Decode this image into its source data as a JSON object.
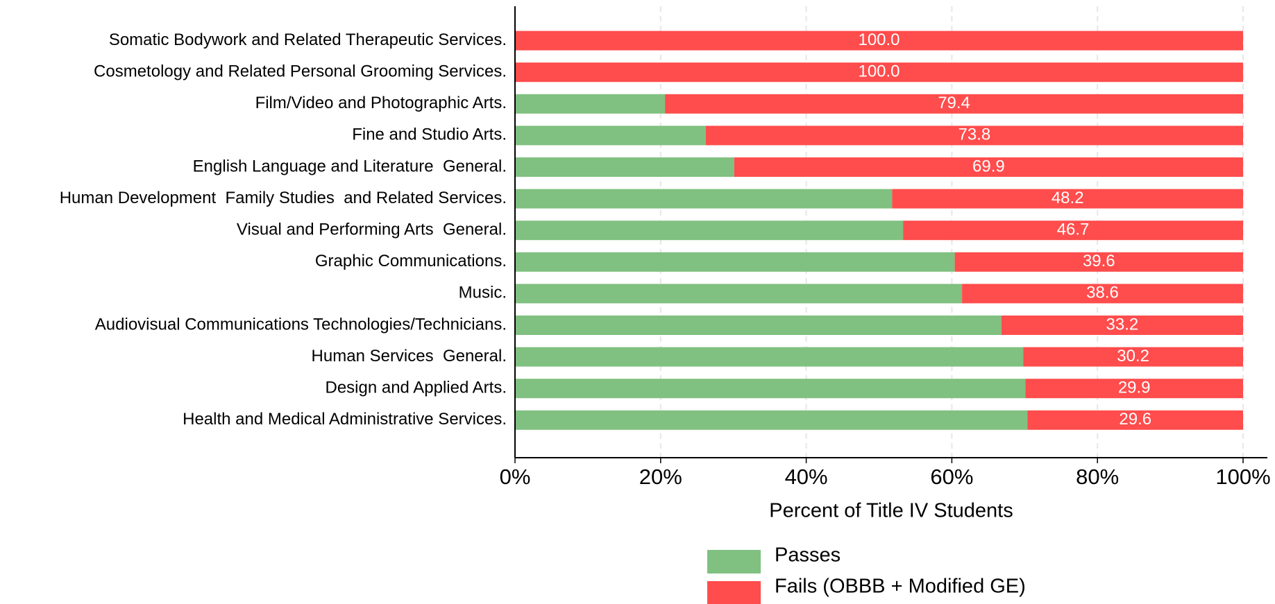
{
  "chart_data": {
    "type": "stacked_barh",
    "x_label": "Percent of Title IV Students",
    "categories": [
      "Somatic Bodywork and Related Therapeutic Services.",
      "Cosmetology and Related Personal Grooming Services.",
      "Film/Video and Photographic Arts.",
      "Fine and Studio Arts.",
      "English Language and Literature  General.",
      "Human Development  Family Studies  and Related Services.",
      "Visual and Performing Arts  General.",
      "Graphic Communications.",
      "Music.",
      "Audiovisual Communications Technologies/Technicians.",
      "Human Services  General.",
      "Design and Applied Arts.",
      "Health and Medical Administrative Services."
    ],
    "series": [
      {
        "name": "Passes",
        "color": "#80c080",
        "values": [
          0,
          0,
          20.6,
          26.2,
          30.1,
          51.8,
          53.3,
          60.4,
          61.4,
          66.8,
          69.8,
          70.1,
          70.4
        ]
      },
      {
        "name": "Fails (OBBB + Modified GE)",
        "color": "#ff4c4c",
        "values": [
          100,
          100,
          79.4,
          73.8,
          69.9,
          48.2,
          46.7,
          39.6,
          38.6,
          33.2,
          30.2,
          29.9,
          29.6
        ],
        "value_labels": [
          "100.0",
          "100.0",
          "79.4",
          "73.8",
          "69.9",
          "48.2",
          "46.7",
          "39.6",
          "38.6",
          "33.2",
          "30.2",
          "29.9",
          "29.6"
        ]
      }
    ],
    "xlim": [
      0,
      100
    ],
    "xticks": [
      {
        "value": 0,
        "label": "0%"
      },
      {
        "value": 20,
        "label": "20%"
      },
      {
        "value": 40,
        "label": "40%"
      },
      {
        "value": 60,
        "label": "60%"
      },
      {
        "value": 80,
        "label": "80%"
      },
      {
        "value": 100,
        "label": "100%"
      }
    ],
    "grid": true,
    "legend": "bottom"
  }
}
